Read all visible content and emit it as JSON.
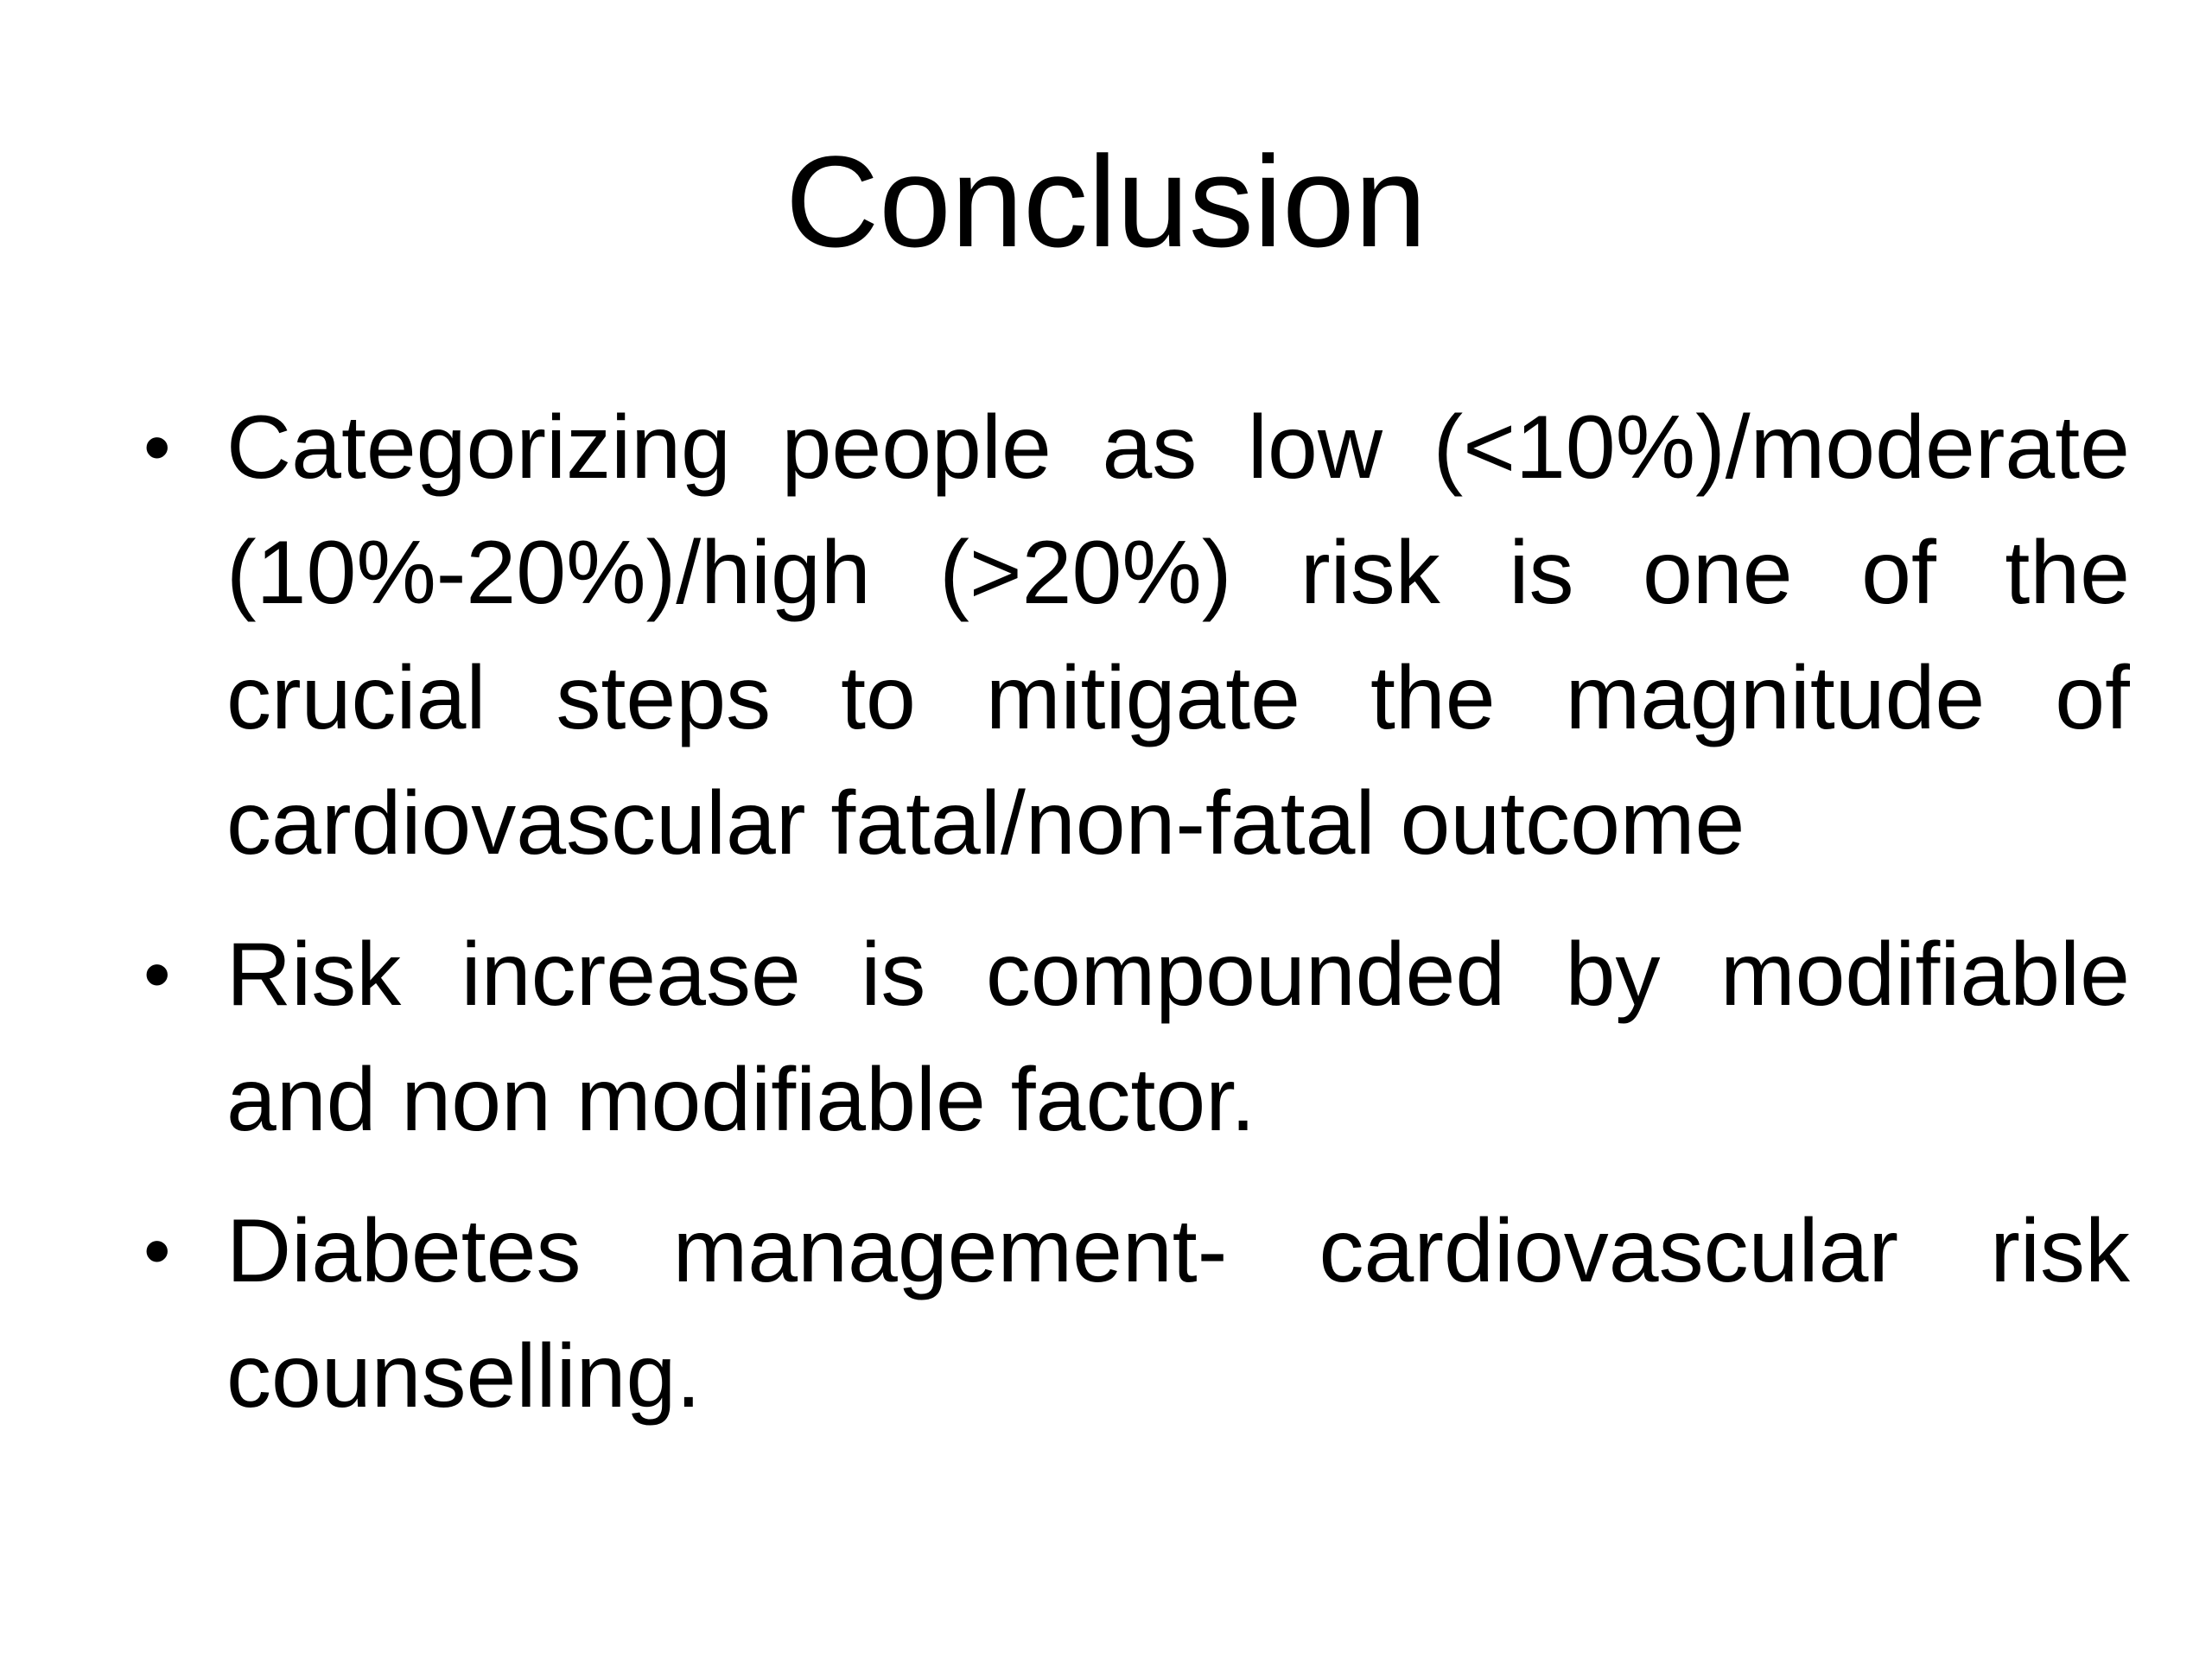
{
  "slide": {
    "title": "Conclusion",
    "bullet_glyph": "•",
    "colors": {
      "background": "#ffffff",
      "text": "#000000"
    },
    "bullets": [
      {
        "text": "Categorizing people as low (<10%)/moderate (10%-20%)/high (>20%) risk is one of the crucial steps to mitigate the magnitude of cardiovascular fatal/non-fatal outcome",
        "lines": [
          "Categorizing people as low (<10%)/moderate",
          "(10%-20%)/high (>20%) risk is one of the",
          "crucial steps to mitigate the magnitude of",
          "cardiovascular fatal/non-fatal outcome"
        ]
      },
      {
        "text": "Risk increase is compounded by modifiable and non modifiable factor.",
        "lines": [
          "Risk increase is compounded by modifiable",
          "and non modifiable factor."
        ]
      },
      {
        "text": "Diabetes management- cardiovascular risk counselling.",
        "lines": [
          "Diabetes management- cardiovascular risk",
          "counselling."
        ]
      }
    ]
  }
}
